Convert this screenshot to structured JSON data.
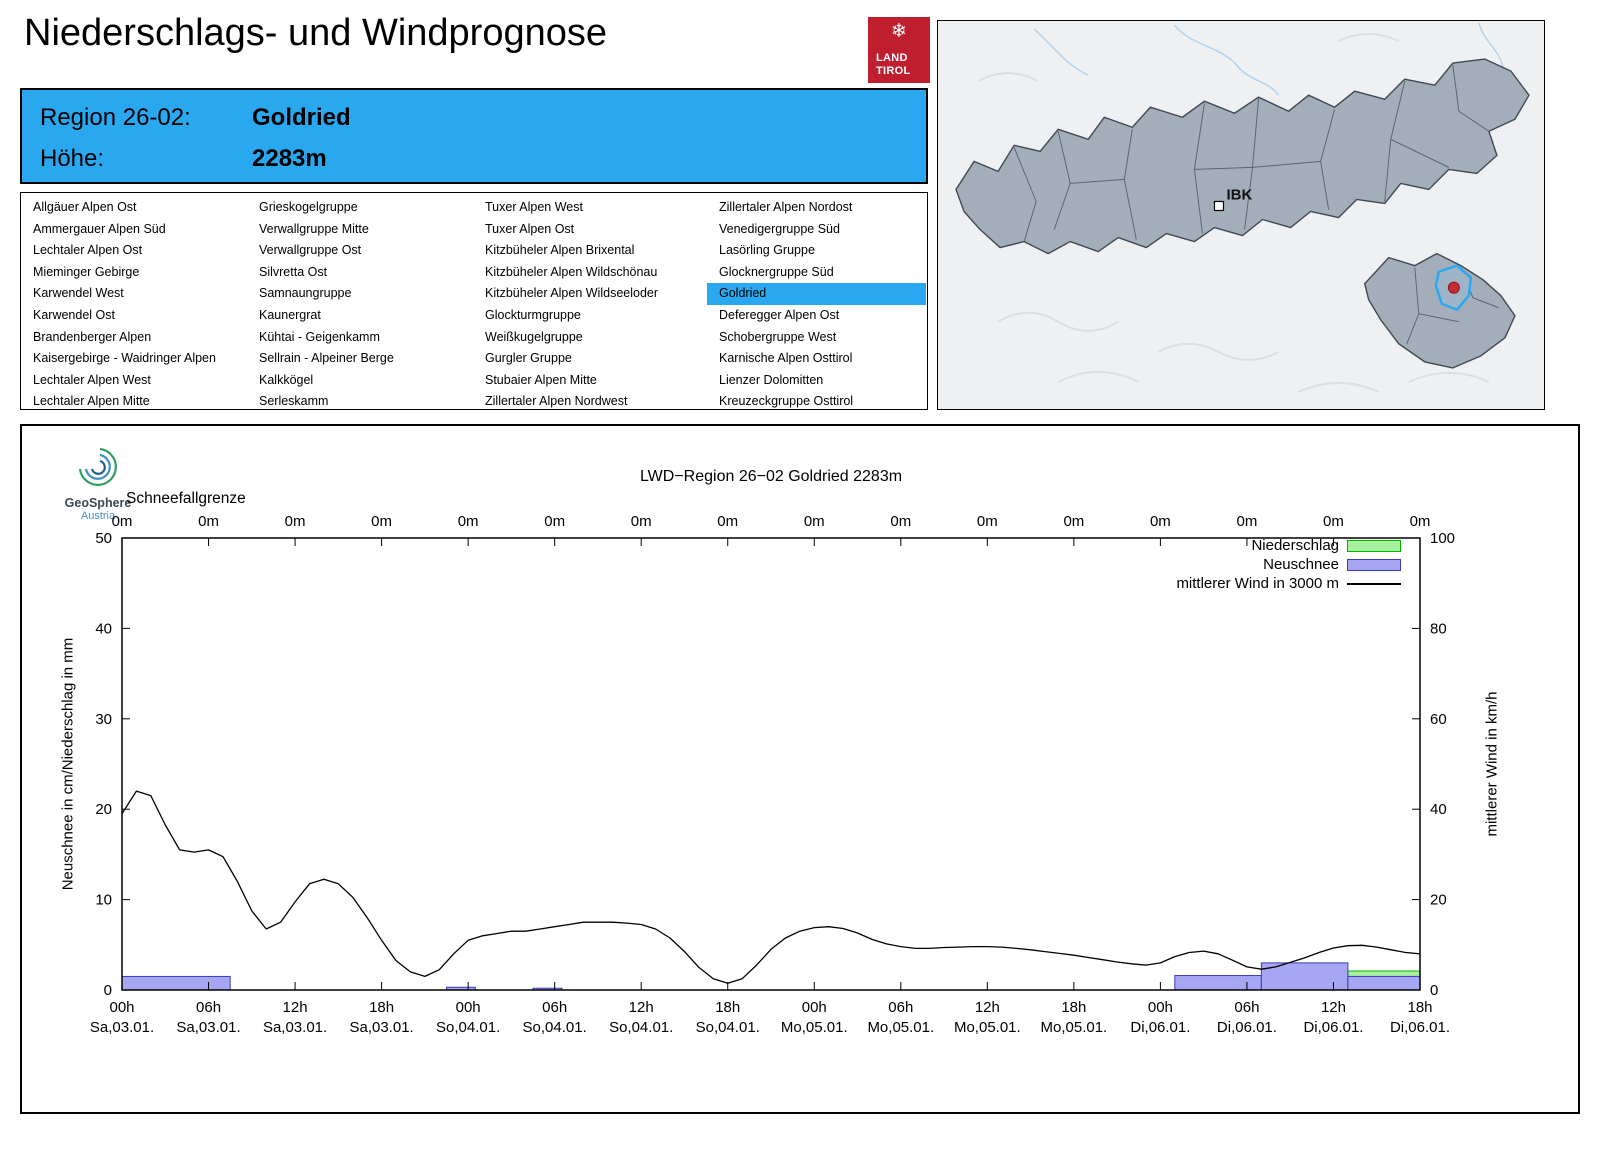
{
  "header": {
    "title": "Niederschlags- und Windprognose",
    "logo": {
      "symbol": "snowflake-icon",
      "line1": "LAND",
      "line2": "TIROL"
    }
  },
  "ui_colors": {
    "accent_blue": "#29a8f0",
    "brand_red": "#bf1e2e"
  },
  "region_info": {
    "region_label": "Region 26-02:",
    "region_value": "Goldried",
    "altitude_label": "Höhe:",
    "altitude_value": "2283m"
  },
  "region_list": {
    "selected": "Goldried",
    "columns": [
      [
        "Allgäuer Alpen Ost",
        "Ammergauer Alpen Süd",
        "Lechtaler Alpen Ost",
        "Mieminger Gebirge",
        "Karwendel West",
        "Karwendel Ost",
        "Brandenberger Alpen",
        "Kaisergebirge - Waidringer Alpen",
        "Lechtaler Alpen West",
        "Lechtaler Alpen Mitte"
      ],
      [
        "Grieskogelgruppe",
        "Verwallgruppe Mitte",
        "Verwallgruppe Ost",
        "Silvretta Ost",
        "Samnaungruppe",
        "Kaunergrat",
        "Kühtai - Geigenkamm",
        "Sellrain - Alpeiner Berge",
        "Kalkkögel",
        "Serleskamm"
      ],
      [
        "Tuxer Alpen West",
        "Tuxer Alpen Ost",
        "Kitzbüheler Alpen Brixental",
        "Kitzbüheler Alpen Wildschönau",
        "Kitzbüheler Alpen Wildseeloder",
        "Glockturmgruppe",
        "Weißkugelgruppe",
        "Gurgler Gruppe",
        "Stubaier Alpen Mitte",
        "Zillertaler Alpen Nordwest"
      ],
      [
        "Zillertaler Alpen Nordost",
        "Venedigergruppe Süd",
        "Lasörling Gruppe",
        "Glocknergruppe Süd",
        "Goldried",
        "Deferegger Alpen Ost",
        "Schobergruppe West",
        "Karnische Alpen Osttirol",
        "Lienzer Dolomitten",
        "Kreuzeckgruppe Osttirol"
      ]
    ]
  },
  "map": {
    "city_label": "IBK",
    "selected_outline_color": "#2aa9f0",
    "marker_color": "#c62a32"
  },
  "geosphere": {
    "name": "GeoSphere",
    "country": "Austria"
  },
  "chart_data": {
    "type": "bar+line",
    "title": "LWD−Region 26−02 Goldried 2283m",
    "snowline_label": "Schneefallgrenze",
    "snowline_values": [
      "0m",
      "0m",
      "0m",
      "0m",
      "0m",
      "0m",
      "0m",
      "0m",
      "0m",
      "0m",
      "0m",
      "0m",
      "0m",
      "0m",
      "0m",
      "0m"
    ],
    "ylabel_left": "Neuschnee in cm/Niederschlag in mm",
    "ylabel_right": "mittlerer Wind in km/h",
    "ylim_left": [
      0,
      50
    ],
    "yticks_left": [
      0,
      10,
      20,
      30,
      40,
      50
    ],
    "ylim_right": [
      0,
      100
    ],
    "yticks_right": [
      0,
      20,
      40,
      60,
      80,
      100
    ],
    "x_hours_range": [
      0,
      90
    ],
    "x_ticks": [
      {
        "hour": "00h",
        "date": "Sa,03.01."
      },
      {
        "hour": "06h",
        "date": "Sa,03.01."
      },
      {
        "hour": "12h",
        "date": "Sa,03.01."
      },
      {
        "hour": "18h",
        "date": "Sa,03.01."
      },
      {
        "hour": "00h",
        "date": "So,04.01."
      },
      {
        "hour": "06h",
        "date": "So,04.01."
      },
      {
        "hour": "12h",
        "date": "So,04.01."
      },
      {
        "hour": "18h",
        "date": "So,04.01."
      },
      {
        "hour": "00h",
        "date": "Mo,05.01."
      },
      {
        "hour": "06h",
        "date": "Mo,05.01."
      },
      {
        "hour": "12h",
        "date": "Mo,05.01."
      },
      {
        "hour": "18h",
        "date": "Mo,05.01."
      },
      {
        "hour": "00h",
        "date": "Di,06.01."
      },
      {
        "hour": "06h",
        "date": "Di,06.01."
      },
      {
        "hour": "12h",
        "date": "Di,06.01."
      },
      {
        "hour": "18h",
        "date": "Di,06.01."
      }
    ],
    "legend": [
      {
        "label": "Niederschlag",
        "type": "box",
        "series": "niederschlag"
      },
      {
        "label": "Neuschnee",
        "type": "box",
        "series": "neuschnee"
      },
      {
        "label": "mittlerer Wind in 3000 m",
        "type": "line",
        "series": "wind"
      }
    ],
    "colors": {
      "niederschlag_fill": "#a8f0a0",
      "niederschlag_border": "#00b400",
      "neuschnee_fill": "#a6a6f2",
      "neuschnee_border": "#3a3ac0",
      "wind_line": "#000000"
    },
    "wind_kmh": {
      "t_start": 0,
      "t_step": 1,
      "values": [
        39,
        44,
        43,
        36.5,
        31,
        30.5,
        31,
        29.5,
        24,
        17.5,
        13.5,
        15,
        19.5,
        23.5,
        24.5,
        23.5,
        20.5,
        16,
        11,
        6.5,
        4,
        3,
        4.5,
        8,
        11,
        12,
        12.5,
        13,
        13,
        13.5,
        14,
        14.5,
        15,
        15,
        15,
        14.8,
        14.5,
        13.5,
        11.5,
        8.5,
        5,
        2.5,
        1.5,
        2.5,
        5.5,
        9,
        11.5,
        13,
        13.8,
        14,
        13.6,
        12.6,
        11.2,
        10.2,
        9.6,
        9.2,
        9.2,
        9.4,
        9.5,
        9.6,
        9.6,
        9.5,
        9.2,
        8.9,
        8.5,
        8.1,
        7.7,
        7.2,
        6.7,
        6.2,
        5.8,
        5.5,
        6,
        7.4,
        8.3,
        8.6,
        8,
        6.6,
        5.1,
        4.6,
        5.1,
        6.1,
        7.1,
        8.3,
        9.3,
        9.8,
        9.9,
        9.5,
        8.9,
        8.3,
        8
      ]
    },
    "neuschnee_bars_cm": [
      {
        "from": 0,
        "to": 7.5,
        "value": 1.5
      },
      {
        "from": 22.5,
        "to": 24.5,
        "value": 0.3
      },
      {
        "from": 28.5,
        "to": 30.5,
        "value": 0.2
      },
      {
        "from": 73,
        "to": 79,
        "value": 1.6
      },
      {
        "from": 79,
        "to": 85,
        "value": 3
      },
      {
        "from": 85,
        "to": 90,
        "value": 1.5
      }
    ],
    "niederschlag_bars_mm": [
      {
        "from": 85,
        "to": 90,
        "value": 2.1
      }
    ]
  }
}
